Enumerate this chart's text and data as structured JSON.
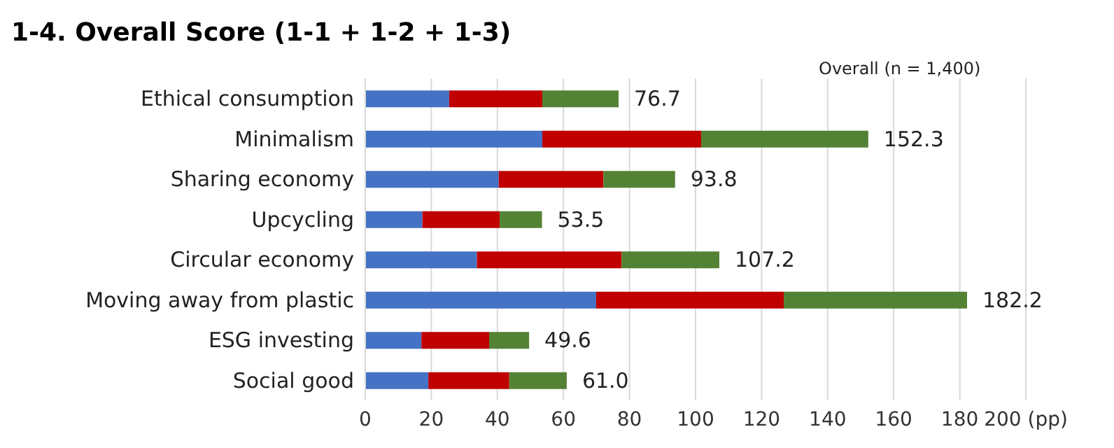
{
  "chart_data": {
    "type": "bar",
    "orientation": "horizontal",
    "stacked": true,
    "title": "1-4. Overall Score (1-1 + 1-2 + 1-3)",
    "annotations": [
      "Overall (n = 1,400)"
    ],
    "categories": [
      "Ethical consumption",
      "Minimalism",
      "Sharing economy",
      "Upcycling",
      "Circular economy",
      "Moving away from plastic",
      "ESG investing",
      "Social good"
    ],
    "series": [
      {
        "color": "#4472c4",
        "values": [
          25.4,
          53.6,
          40.4,
          17.3,
          33.8,
          69.9,
          17.0,
          19.1
        ]
      },
      {
        "color": "#c00000",
        "values": [
          28.2,
          48.1,
          31.7,
          23.4,
          43.8,
          56.8,
          20.5,
          24.5
        ]
      },
      {
        "color": "#548235",
        "values": [
          23.1,
          50.6,
          21.7,
          12.8,
          29.6,
          55.5,
          12.1,
          17.4
        ]
      }
    ],
    "totals": [
      "76.7",
      "152.3",
      "93.8",
      "53.5",
      "107.2",
      "182.2",
      "49.6",
      "61.0"
    ],
    "xlim": [
      0,
      200
    ],
    "xticks": [
      0,
      20,
      40,
      60,
      80,
      100,
      120,
      140,
      160,
      180,
      {
        "value": 200,
        "label": "200 (pp)"
      }
    ],
    "grid": "x",
    "legend": false
  }
}
